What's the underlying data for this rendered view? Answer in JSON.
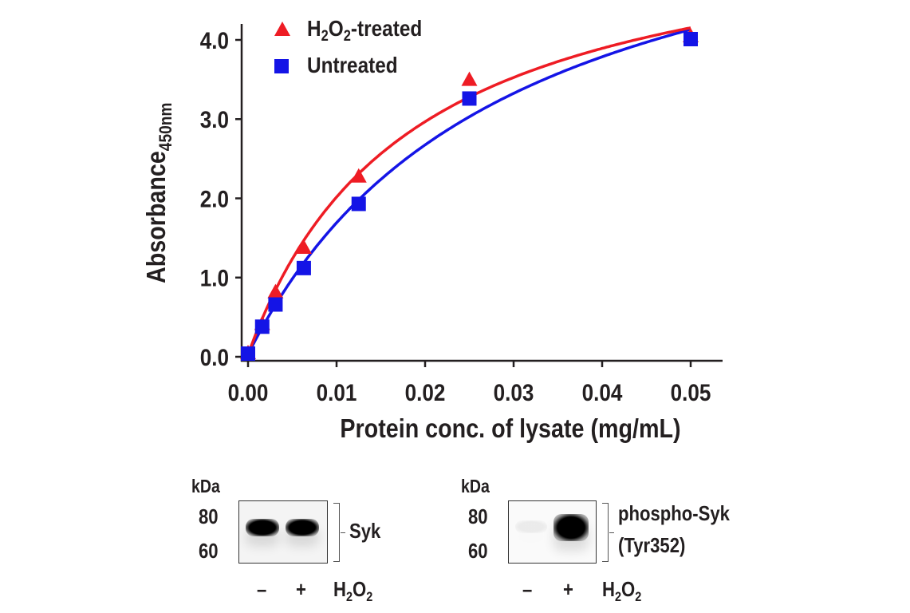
{
  "chart_data": {
    "type": "scatter",
    "xlabel": "Protein conc. of lysate (mg/mL)",
    "ylabel": "Absorbance",
    "ylabel_sub": "450nm",
    "xlim": [
      0,
      0.05
    ],
    "ylim": [
      0,
      4.0
    ],
    "xticks": [
      "0.00",
      "0.01",
      "0.02",
      "0.03",
      "0.04",
      "0.05"
    ],
    "yticks": [
      "0.0",
      "1.0",
      "2.0",
      "3.0",
      "4.0"
    ],
    "legend": "top-left",
    "series": [
      {
        "name": "H2O2-treated",
        "legend_main": "H",
        "legend_parts": [
          "2",
          "O",
          "2",
          "-treated"
        ],
        "color": "#ee1c24",
        "marker": "triangle",
        "x": [
          0,
          0.0016,
          0.0031,
          0.0063,
          0.0125,
          0.025,
          0.05
        ],
        "y": [
          0.05,
          0.42,
          0.82,
          1.38,
          2.28,
          3.5,
          4.05
        ],
        "fit": {
          "vmax": 5.64,
          "k": 0.0184
        }
      },
      {
        "name": "Untreated",
        "color": "#1414e6",
        "marker": "square",
        "x": [
          0,
          0.0016,
          0.0031,
          0.0063,
          0.0125,
          0.025,
          0.05
        ],
        "y": [
          0.04,
          0.38,
          0.66,
          1.12,
          1.93,
          3.26,
          4.01
        ],
        "fit": {
          "vmax": 6.48,
          "k": 0.029
        }
      }
    ]
  },
  "blots": [
    {
      "kda": "kDa",
      "m80": "80",
      "m60": "60",
      "label1": "Syk",
      "label2": "",
      "minus": "–",
      "plus": "+",
      "treat_h": "H",
      "treat_2a": "2",
      "treat_o": "O",
      "treat_2b": "2",
      "band_intensity": [
        1.0,
        1.0
      ]
    },
    {
      "kda": "kDa",
      "m80": "80",
      "m60": "60",
      "label1": "phospho-Syk",
      "label2": "(Tyr352)",
      "minus": "–",
      "plus": "+",
      "treat_h": "H",
      "treat_2a": "2",
      "treat_o": "O",
      "treat_2b": "2",
      "band_intensity": [
        0.06,
        1.0
      ]
    }
  ]
}
